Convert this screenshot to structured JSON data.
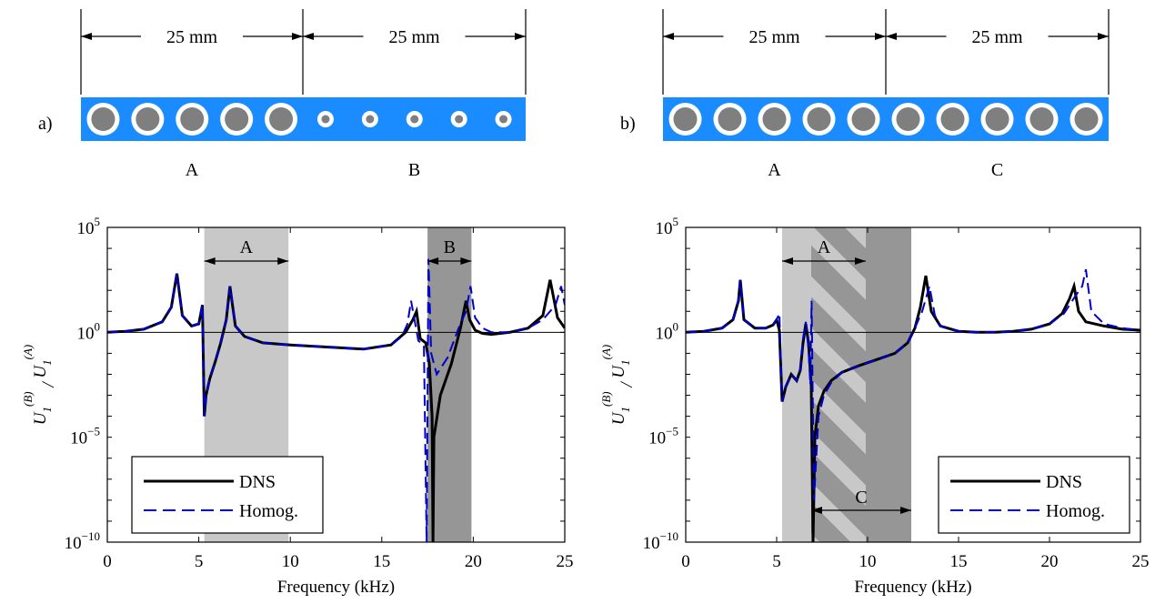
{
  "panels": [
    {
      "label": "a)",
      "dimensions": [
        "25 mm",
        "25 mm"
      ],
      "segment_labels": [
        "A",
        "B"
      ],
      "segments": [
        {
          "cells": 5,
          "hole": "large"
        },
        {
          "cells": 5,
          "hole": "small"
        }
      ]
    },
    {
      "label": "b)",
      "dimensions": [
        "25 mm",
        "25 mm"
      ],
      "segment_labels": [
        "A",
        "C"
      ],
      "segments": [
        {
          "cells": 5,
          "hole": "large"
        },
        {
          "cells": 5,
          "hole": "large"
        }
      ]
    }
  ],
  "colors": {
    "strip": "#1a8cff",
    "inclusion": "#7f7f7f",
    "ring": "#ffffff",
    "band_light": "#c8c8c8",
    "band_dark": "#969696",
    "dns": "#000000",
    "homog": "#0000cc"
  },
  "chart_data": [
    {
      "type": "line",
      "xlabel": "Frequency (kHz)",
      "ylabel": "U_1^{(B)} / U_1^{(A)}",
      "xlim": [
        0,
        25
      ],
      "ylim": [
        1e-10,
        100000.0
      ],
      "yscale": "log",
      "xticks": [
        "0",
        "5",
        "10",
        "15",
        "20",
        "25"
      ],
      "yticks": [
        {
          "base": "10",
          "exp": "5"
        },
        {
          "base": "10",
          "exp": "0"
        },
        {
          "base": "10",
          "exp": "−5"
        },
        {
          "base": "10",
          "exp": "−10"
        }
      ],
      "bands": [
        {
          "label": "A",
          "from": 5.3,
          "to": 9.9,
          "shade": "light"
        },
        {
          "label": "B",
          "from": 17.5,
          "to": 19.9,
          "shade": "dark"
        }
      ],
      "legend": {
        "position": "bottom-left",
        "entries": [
          "DNS",
          "Homog."
        ]
      },
      "series": [
        {
          "name": "DNS",
          "style": "solid",
          "x": [
            0,
            1,
            2,
            3,
            3.5,
            3.8,
            4.1,
            4.6,
            5.0,
            5.2,
            5.3,
            5.4,
            5.6,
            5.9,
            6.2,
            6.5,
            6.7,
            7.0,
            7.5,
            8.5,
            10,
            12,
            14,
            15.5,
            16.3,
            16.7,
            16.9,
            17.1,
            17.4,
            17.6,
            17.75,
            17.8,
            17.85,
            18.2,
            18.8,
            19.3,
            19.6,
            19.8,
            20.1,
            20.5,
            21,
            22,
            23,
            23.8,
            24.2,
            24.6,
            25
          ],
          "y": [
            0,
            0.05,
            0.15,
            0.5,
            1.2,
            2.8,
            0.8,
            0.3,
            0.4,
            1.3,
            -4,
            -3,
            -2.2,
            -1.4,
            -0.5,
            0.6,
            2.2,
            0.3,
            -0.2,
            -0.5,
            -0.6,
            -0.7,
            -0.8,
            -0.6,
            0,
            0.6,
            1.0,
            -0.3,
            -0.5,
            -1.5,
            -4,
            -10,
            -5,
            -3,
            -1.5,
            0.2,
            1.5,
            0.6,
            0.1,
            -0.05,
            -0.1,
            0,
            0.2,
            0.8,
            2.5,
            0.7,
            0.2
          ]
        },
        {
          "name": "Homog.",
          "style": "dashed",
          "x": [
            0,
            1,
            2,
            3,
            3.5,
            3.8,
            4.1,
            4.6,
            5.0,
            5.2,
            5.3,
            5.4,
            5.6,
            5.9,
            6.2,
            6.5,
            6.7,
            7.0,
            7.5,
            8.5,
            10,
            12,
            14,
            15.5,
            16.1,
            16.4,
            16.6,
            17.0,
            17.3,
            17.45,
            17.55,
            17.7,
            18.0,
            18.6,
            19.2,
            19.6,
            19.85,
            20.1,
            20.5,
            21,
            22,
            23,
            23.8,
            24.5,
            24.8,
            25
          ],
          "y": [
            0,
            0.05,
            0.15,
            0.5,
            1.2,
            2.8,
            0.8,
            0.3,
            0.4,
            1.3,
            -4,
            -3,
            -2.2,
            -1.4,
            -0.5,
            0.6,
            2.2,
            0.3,
            -0.2,
            -0.5,
            -0.6,
            -0.7,
            -0.8,
            -0.6,
            -0.2,
            0.4,
            1.5,
            -0.4,
            -0.6,
            -10,
            3.5,
            -1,
            -2,
            -1.2,
            0.2,
            1.0,
            2.2,
            0.7,
            0.2,
            0,
            0,
            0.2,
            0.6,
            1.3,
            2.2,
            1.3
          ]
        }
      ]
    },
    {
      "type": "line",
      "xlabel": "Frequency (kHz)",
      "ylabel": "U_1^{(B)} / U_1^{(A)}",
      "xlim": [
        0,
        25
      ],
      "ylim": [
        1e-10,
        100000.0
      ],
      "yscale": "log",
      "xticks": [
        "0",
        "5",
        "10",
        "15",
        "20",
        "25"
      ],
      "yticks": [
        {
          "base": "10",
          "exp": "5"
        },
        {
          "base": "10",
          "exp": "0"
        },
        {
          "base": "10",
          "exp": "−5"
        },
        {
          "base": "10",
          "exp": "−10"
        }
      ],
      "bands": [
        {
          "label": "A",
          "from": 5.3,
          "to": 9.9,
          "shade": "light"
        },
        {
          "label": "C",
          "from": 6.9,
          "to": 12.4,
          "shade": "dark"
        }
      ],
      "legend": {
        "position": "bottom-right",
        "entries": [
          "DNS",
          "Homog."
        ]
      },
      "series": [
        {
          "name": "DNS",
          "style": "solid",
          "x": [
            0,
            1,
            2,
            2.6,
            2.9,
            3.0,
            3.2,
            3.8,
            4.4,
            4.8,
            5.0,
            5.15,
            5.3,
            5.5,
            5.8,
            6.1,
            6.3,
            6.45,
            6.6,
            6.75,
            6.9,
            7.0,
            7.1,
            7.3,
            7.6,
            8.0,
            8.6,
            9.5,
            10.5,
            11.5,
            12.2,
            12.6,
            12.9,
            13.2,
            13.5,
            14,
            15,
            16,
            17,
            18,
            19,
            20,
            20.7,
            21.1,
            21.35,
            21.6,
            22,
            23,
            24,
            25
          ],
          "y": [
            0,
            0.05,
            0.2,
            0.6,
            1.5,
            2.5,
            0.6,
            0.2,
            0.2,
            0.35,
            0.6,
            0.1,
            -3.3,
            -2.6,
            -2.0,
            -2.3,
            -1.8,
            -0.5,
            0.4,
            -0.5,
            -2.5,
            -10,
            -5,
            -3.5,
            -2.8,
            -2.3,
            -1.9,
            -1.6,
            -1.3,
            -1,
            -0.5,
            0.2,
            1.2,
            2.7,
            1.0,
            0.3,
            0.05,
            0,
            0,
            0.05,
            0.15,
            0.4,
            0.9,
            1.6,
            2.2,
            1.0,
            0.5,
            0.3,
            0.15,
            0.1
          ]
        },
        {
          "name": "Homog.",
          "style": "dashed",
          "x": [
            0,
            1,
            2,
            2.6,
            2.9,
            3.0,
            3.2,
            3.8,
            4.4,
            4.8,
            5.0,
            5.15,
            5.3,
            5.5,
            5.8,
            6.1,
            6.3,
            6.45,
            6.6,
            6.75,
            6.85,
            6.92,
            7.05,
            7.3,
            7.6,
            8.0,
            8.6,
            9.5,
            10.5,
            11.5,
            12.2,
            12.6,
            13.0,
            13.4,
            13.7,
            14,
            15,
            16,
            17,
            18,
            19,
            20,
            20.8,
            21.4,
            21.8,
            22.0,
            22.3,
            23,
            24,
            25
          ],
          "y": [
            0,
            0.05,
            0.2,
            0.6,
            1.5,
            2.5,
            0.6,
            0.2,
            0.2,
            0.35,
            0.6,
            0.9,
            -3.3,
            -2.6,
            -2.0,
            -2.3,
            -1.8,
            -0.3,
            0.5,
            -0.8,
            -2.5,
            1.5,
            -8,
            -4,
            -3,
            -2.4,
            -1.9,
            -1.6,
            -1.3,
            -1,
            -0.5,
            0.2,
            1.0,
            2.2,
            0.8,
            0.3,
            0.05,
            0,
            0,
            0.05,
            0.15,
            0.4,
            0.9,
            1.7,
            2.2,
            3.0,
            1.0,
            0.4,
            0.2,
            0.1
          ]
        }
      ]
    }
  ]
}
